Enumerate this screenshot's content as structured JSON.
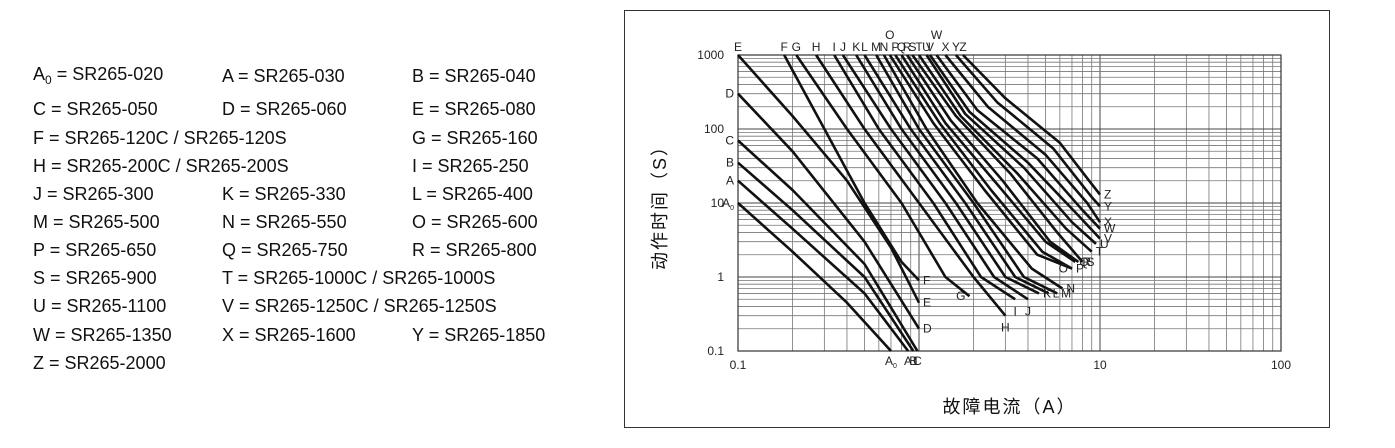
{
  "legend": [
    {
      "code": "A",
      "sub": "0",
      "text": " = SR265-020"
    },
    {
      "code": "A",
      "text": " = SR265-030"
    },
    {
      "code": "B",
      "text": " = SR265-040"
    },
    {
      "code": "C",
      "text": " = SR265-050"
    },
    {
      "code": "D",
      "text": " = SR265-060"
    },
    {
      "code": "E",
      "text": " = SR265-080"
    },
    {
      "code": "F",
      "text": " = SR265-120C / SR265-120S"
    },
    {
      "code": "G",
      "text": " = SR265-160"
    },
    {
      "code": "H",
      "text": " = SR265-200C / SR265-200S"
    },
    {
      "code": "I",
      "text": " = SR265-250"
    },
    {
      "code": "J",
      "text": " = SR265-300"
    },
    {
      "code": "K",
      "text": " = SR265-330"
    },
    {
      "code": "L",
      "text": " = SR265-400"
    },
    {
      "code": "M",
      "text": " = SR265-500"
    },
    {
      "code": "N",
      "text": " = SR265-550"
    },
    {
      "code": "O",
      "text": " = SR265-600"
    },
    {
      "code": "P",
      "text": " = SR265-650"
    },
    {
      "code": "Q",
      "text": " = SR265-750"
    },
    {
      "code": "R",
      "text": " = SR265-800"
    },
    {
      "code": "S",
      "text": " = SR265-900"
    },
    {
      "code": "T",
      "text": " = SR265-1000C / SR265-1000S"
    },
    {
      "code": "U",
      "text": " = SR265-1100"
    },
    {
      "code": "V",
      "text": " = SR265-1250C / SR265-1250S"
    },
    {
      "code": "W",
      "text": " = SR265-1350"
    },
    {
      "code": "X",
      "text": " = SR265-1600"
    },
    {
      "code": "Y",
      "text": " = SR265-1850"
    },
    {
      "code": "Z",
      "text": " = SR265-2000"
    }
  ],
  "chart_data": {
    "type": "line",
    "xlabel": "故障电流（A）",
    "ylabel": "动作时间（S）",
    "xscale": "log",
    "yscale": "log",
    "xlim": [
      0.1,
      100
    ],
    "ylim": [
      0.1,
      1000
    ],
    "xticks": [
      {
        "v": 0.1,
        "label": "0.1"
      },
      {
        "v": 10,
        "label": "10"
      },
      {
        "v": 100,
        "label": "100"
      }
    ],
    "yticks": [
      {
        "v": 0.1,
        "label": "0.1"
      },
      {
        "v": 1,
        "label": "1"
      },
      {
        "v": 10,
        "label": "10"
      },
      {
        "v": 100,
        "label": "100"
      },
      {
        "v": 1000,
        "label": "1000"
      }
    ],
    "grid": true,
    "series": [
      {
        "name": "A0",
        "x": [
          0.1,
          0.2,
          0.4,
          0.7
        ],
        "y": [
          10,
          2.2,
          0.45,
          0.1
        ]
      },
      {
        "name": "A",
        "x": [
          0.1,
          0.2,
          0.5,
          0.87
        ],
        "y": [
          20,
          4.5,
          0.6,
          0.1
        ]
      },
      {
        "name": "B",
        "x": [
          0.1,
          0.2,
          0.5,
          0.93
        ],
        "y": [
          35,
          8,
          1,
          0.1
        ]
      },
      {
        "name": "C",
        "x": [
          0.1,
          0.2,
          0.5,
          0.98
        ],
        "y": [
          70,
          15,
          1.5,
          0.1
        ]
      },
      {
        "name": "D",
        "x": [
          0.1,
          0.2,
          0.5,
          1.0
        ],
        "y": [
          300,
          50,
          3,
          0.2
        ]
      },
      {
        "name": "E",
        "x": [
          0.1,
          0.2,
          0.4,
          0.7,
          1.0
        ],
        "y": [
          1000,
          150,
          20,
          2.5,
          0.45
        ]
      },
      {
        "name": "F",
        "x": [
          0.18,
          0.3,
          0.5,
          0.8,
          1.0
        ],
        "y": [
          1000,
          100,
          10,
          1.6,
          0.9
        ]
      },
      {
        "name": "G",
        "x": [
          0.21,
          0.4,
          0.8,
          1.4,
          1.9
        ],
        "y": [
          1000,
          100,
          10,
          1,
          0.55
        ]
      },
      {
        "name": "H",
        "x": [
          0.27,
          0.5,
          1.0,
          2.0,
          3.0
        ],
        "y": [
          1000,
          100,
          10,
          1,
          0.3
        ]
      },
      {
        "name": "I",
        "x": [
          0.34,
          0.6,
          1.2,
          2.2,
          3.4
        ],
        "y": [
          1000,
          100,
          10,
          1,
          0.5
        ]
      },
      {
        "name": "J",
        "x": [
          0.38,
          0.7,
          1.4,
          2.6,
          4.0
        ],
        "y": [
          1000,
          100,
          10,
          1,
          0.5
        ]
      },
      {
        "name": "K",
        "x": [
          0.45,
          0.8,
          1.6,
          3.0,
          4.6
        ],
        "y": [
          1000,
          100,
          10,
          1,
          0.6
        ]
      },
      {
        "name": "L",
        "x": [
          0.5,
          0.9,
          1.8,
          3.4,
          5.2
        ],
        "y": [
          1000,
          100,
          10,
          1,
          0.6
        ]
      },
      {
        "name": "M",
        "x": [
          0.58,
          1.0,
          2.0,
          3.8,
          5.8
        ],
        "y": [
          1000,
          100,
          10,
          1,
          0.6
        ]
      },
      {
        "name": "N",
        "x": [
          0.64,
          1.1,
          2.1,
          4.2,
          6.2
        ],
        "y": [
          1000,
          100,
          10,
          1.3,
          0.7
        ]
      },
      {
        "name": "O",
        "x": [
          0.69,
          1.2,
          2.3,
          4.5,
          7.0
        ],
        "y": [
          1000,
          120,
          15,
          2,
          1.3
        ]
      },
      {
        "name": "P",
        "x": [
          0.74,
          1.3,
          2.5,
          4.8,
          7.0
        ],
        "y": [
          1000,
          120,
          15,
          2.2,
          1.3
        ]
      },
      {
        "name": "Q",
        "x": [
          0.8,
          1.4,
          2.7,
          5.0,
          7.3
        ],
        "y": [
          1000,
          120,
          18,
          3,
          1.6
        ]
      },
      {
        "name": "R",
        "x": [
          0.86,
          1.5,
          2.9,
          5.3,
          7.6
        ],
        "y": [
          1000,
          130,
          20,
          3,
          1.6
        ]
      },
      {
        "name": "S",
        "x": [
          0.92,
          1.6,
          3.2,
          5.8,
          8.0
        ],
        "y": [
          1000,
          150,
          25,
          4,
          1.6
        ]
      },
      {
        "name": "T",
        "x": [
          1.0,
          1.7,
          3.5,
          6.5,
          9.0
        ],
        "y": [
          1000,
          150,
          25,
          4.5,
          2.2
        ]
      },
      {
        "name": "U",
        "x": [
          1.1,
          1.8,
          3.8,
          7.0,
          9.5
        ],
        "y": [
          1000,
          160,
          30,
          5.5,
          2.8
        ]
      },
      {
        "name": "V",
        "x": [
          1.15,
          1.9,
          4.0,
          7.5,
          10
        ],
        "y": [
          1000,
          170,
          35,
          7,
          3.3
        ]
      },
      {
        "name": "W",
        "x": [
          1.25,
          2.1,
          4.5,
          8.0,
          10
        ],
        "y": [
          1000,
          180,
          40,
          8,
          4.5
        ]
      },
      {
        "name": "X",
        "x": [
          1.4,
          2.4,
          5.0,
          8.5,
          10
        ],
        "y": [
          1000,
          200,
          45,
          10,
          5.5
        ]
      },
      {
        "name": "Y",
        "x": [
          1.6,
          2.7,
          5.5,
          9.0,
          10
        ],
        "y": [
          1000,
          230,
          55,
          12,
          9
        ]
      },
      {
        "name": "Z",
        "x": [
          1.75,
          3.0,
          6.0,
          9.0,
          10
        ],
        "y": [
          1000,
          260,
          65,
          18,
          13
        ]
      }
    ],
    "annotations": [
      {
        "text": "E",
        "x": 0.1,
        "y": 1000,
        "pos": "top"
      },
      {
        "text": "F",
        "x": 0.18,
        "y": 1000,
        "pos": "top"
      },
      {
        "text": "G",
        "x": 0.21,
        "y": 1000,
        "pos": "top"
      },
      {
        "text": "H",
        "x": 0.27,
        "y": 1000,
        "pos": "top"
      },
      {
        "text": "I",
        "x": 0.34,
        "y": 1000,
        "pos": "top"
      },
      {
        "text": "J",
        "x": 0.38,
        "y": 1000,
        "pos": "top"
      },
      {
        "text": "K",
        "x": 0.45,
        "y": 1000,
        "pos": "top"
      },
      {
        "text": "L",
        "x": 0.5,
        "y": 1000,
        "pos": "top"
      },
      {
        "text": "M",
        "x": 0.58,
        "y": 1000,
        "pos": "top"
      },
      {
        "text": "N",
        "x": 0.64,
        "y": 1000,
        "pos": "top"
      },
      {
        "text": "O",
        "x": 0.69,
        "y": 1000,
        "pos": "top2"
      },
      {
        "text": "P",
        "x": 0.74,
        "y": 1000,
        "pos": "top"
      },
      {
        "text": "Q",
        "x": 0.8,
        "y": 1000,
        "pos": "top"
      },
      {
        "text": "R",
        "x": 0.86,
        "y": 1000,
        "pos": "top"
      },
      {
        "text": "S",
        "x": 0.92,
        "y": 1000,
        "pos": "top"
      },
      {
        "text": "T",
        "x": 1.0,
        "y": 1000,
        "pos": "top"
      },
      {
        "text": "U",
        "x": 1.1,
        "y": 1000,
        "pos": "top"
      },
      {
        "text": "V",
        "x": 1.15,
        "y": 1000,
        "pos": "top"
      },
      {
        "text": "W",
        "x": 1.25,
        "y": 1000,
        "pos": "top2"
      },
      {
        "text": "X",
        "x": 1.4,
        "y": 1000,
        "pos": "top"
      },
      {
        "text": "Y",
        "x": 1.6,
        "y": 1000,
        "pos": "top"
      },
      {
        "text": "Z",
        "x": 1.75,
        "y": 1000,
        "pos": "top"
      },
      {
        "text": "D",
        "x": 0.1,
        "y": 300,
        "pos": "left"
      },
      {
        "text": "C",
        "x": 0.1,
        "y": 70,
        "pos": "left"
      },
      {
        "text": "B",
        "x": 0.1,
        "y": 35,
        "pos": "left"
      },
      {
        "text": "A",
        "x": 0.1,
        "y": 20,
        "pos": "left"
      },
      {
        "text": "A",
        "sub": "0",
        "x": 0.1,
        "y": 10,
        "pos": "left"
      },
      {
        "text": "A",
        "sub": "0",
        "x": 0.7,
        "y": 0.1,
        "pos": "bottom"
      },
      {
        "text": "A",
        "x": 0.87,
        "y": 0.1,
        "pos": "bottom"
      },
      {
        "text": "B",
        "x": 0.93,
        "y": 0.1,
        "pos": "bottom"
      },
      {
        "text": "1",
        "x": 0.96,
        "y": 0.1,
        "pos": "bottom"
      },
      {
        "text": "C",
        "x": 0.98,
        "y": 0.1,
        "pos": "bottom"
      },
      {
        "text": "D",
        "x": 1.0,
        "y": 0.2,
        "pos": "right"
      },
      {
        "text": "E",
        "x": 1.0,
        "y": 0.45,
        "pos": "right"
      },
      {
        "text": "F",
        "x": 1.0,
        "y": 0.9,
        "pos": "right"
      },
      {
        "text": "G",
        "x": 1.9,
        "y": 0.55,
        "pos": "left"
      },
      {
        "text": "H",
        "x": 3.0,
        "y": 0.3,
        "pos": "below"
      },
      {
        "text": "I",
        "x": 3.4,
        "y": 0.5,
        "pos": "below"
      },
      {
        "text": "J",
        "x": 4.0,
        "y": 0.5,
        "pos": "below"
      },
      {
        "text": "K",
        "x": 4.6,
        "y": 0.6,
        "pos": "right"
      },
      {
        "text": "L",
        "x": 5.2,
        "y": 0.6,
        "pos": "right"
      },
      {
        "text": "M",
        "x": 5.8,
        "y": 0.6,
        "pos": "right"
      },
      {
        "text": "N",
        "x": 6.2,
        "y": 0.7,
        "pos": "right"
      },
      {
        "text": "O",
        "x": 7.0,
        "y": 1.3,
        "pos": "left"
      },
      {
        "text": "P",
        "x": 7.0,
        "y": 1.3,
        "pos": "right"
      },
      {
        "text": "Q",
        "x": 7.3,
        "y": 1.6,
        "pos": "right"
      },
      {
        "text": "R",
        "x": 7.6,
        "y": 1.6,
        "pos": "right"
      },
      {
        "text": "S",
        "x": 8.0,
        "y": 1.6,
        "pos": "right"
      },
      {
        "text": "T",
        "x": 9.0,
        "y": 2.2,
        "pos": "right"
      },
      {
        "text": "U",
        "x": 9.5,
        "y": 2.8,
        "pos": "right"
      },
      {
        "text": "V",
        "x": 10,
        "y": 3.3,
        "pos": "right"
      },
      {
        "text": "W",
        "x": 10,
        "y": 4.5,
        "pos": "right"
      },
      {
        "text": "X",
        "x": 10,
        "y": 5.5,
        "pos": "right"
      },
      {
        "text": "Y",
        "x": 10,
        "y": 9,
        "pos": "right"
      },
      {
        "text": "Z",
        "x": 10,
        "y": 13,
        "pos": "right"
      }
    ]
  }
}
